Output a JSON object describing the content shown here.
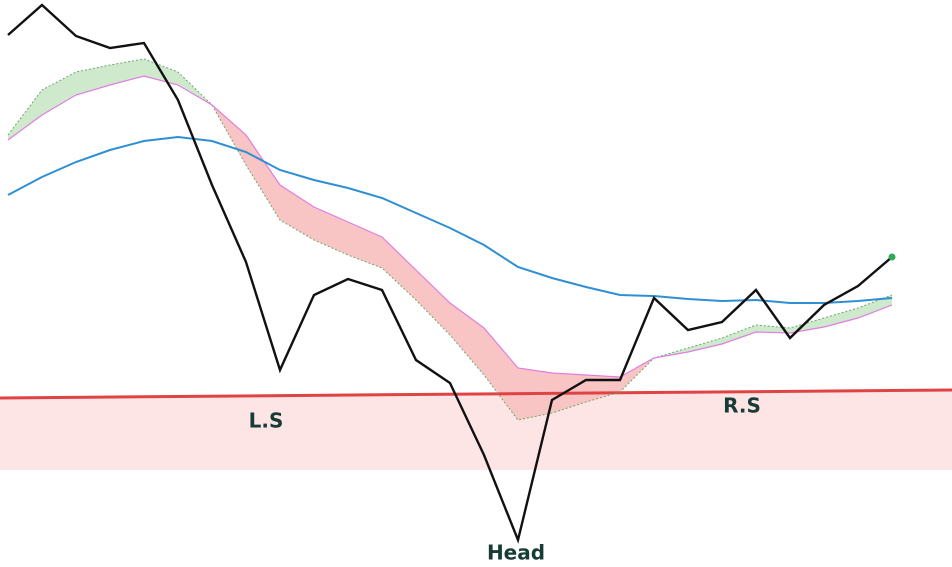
{
  "chart_data": {
    "type": "line",
    "x": [
      0,
      1,
      2,
      3,
      4,
      5,
      6,
      7,
      8,
      9,
      10,
      11,
      12,
      13,
      14,
      15,
      16,
      17,
      18,
      19,
      20,
      21,
      22,
      23,
      24,
      25,
      26
    ],
    "xlim": [
      -0.235,
      27.765
    ],
    "ylim": [
      0,
      567
    ],
    "series": [
      {
        "color": "#111111",
        "values": [
          532,
          562,
          531,
          519,
          524,
          467,
          382,
          305,
          197,
          272,
          288,
          277,
          207,
          184,
          112,
          27,
          167,
          187,
          187,
          269,
          237,
          245,
          277,
          229,
          262,
          281,
          310
        ]
      },
      {
        "color": "#2f8fd3",
        "values": [
          372,
          390,
          405,
          417,
          426,
          430,
          426,
          415,
          397,
          387,
          379,
          369,
          354,
          339,
          322,
          300,
          289,
          280,
          272,
          271,
          268,
          266,
          267,
          264,
          264,
          266,
          269
        ]
      },
      {
        "color": "#e07ee0",
        "values": [
          427,
          452,
          472,
          482,
          491,
          482,
          462,
          432,
          382,
          360,
          345,
          330,
          297,
          264,
          239,
          199,
          194,
          192,
          190,
          209,
          215,
          223,
          235,
          234,
          240,
          249,
          262
        ]
      },
      {
        "color": "#6aa86a",
        "values": [
          432,
          477,
          495,
          502,
          508,
          495,
          462,
          402,
          347,
          327,
          312,
          299,
          267,
          232,
          192,
          147,
          154,
          165,
          175,
          209,
          219,
          229,
          242,
          239,
          249,
          259,
          272
        ]
      }
    ],
    "cloud_colors": {
      "up": "#cfe9cd",
      "down": "#f9c4c4"
    },
    "support_zone": {
      "color": "#fde4e5",
      "line_color": "#e04343",
      "upper": [
        169,
        177
      ],
      "lower": [
        97,
        97
      ]
    },
    "last_point_color": "#2eaa55",
    "annotations": [
      "L.S",
      "Head",
      "R.S"
    ]
  }
}
